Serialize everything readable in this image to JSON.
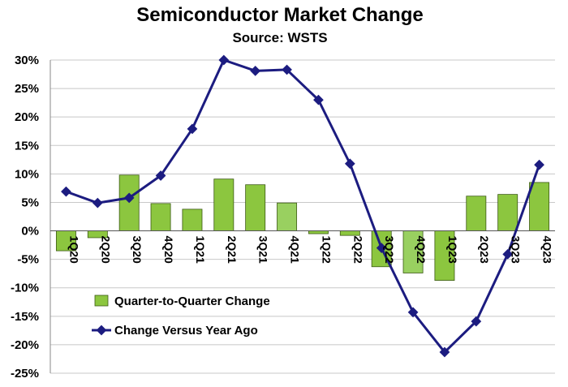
{
  "chart_data": {
    "type": "bar+line",
    "title": "Semiconductor Market Change",
    "subtitle": "Source: WSTS",
    "categories": [
      "1Q20",
      "2Q20",
      "3Q20",
      "4Q20",
      "1Q21",
      "2Q21",
      "3Q21",
      "4Q21",
      "1Q22",
      "2Q22",
      "3Q22",
      "4Q22",
      "1Q23",
      "2Q23",
      "3Q23",
      "4Q23"
    ],
    "series": [
      {
        "name": "Quarter-to-Quarter Change",
        "kind": "bar",
        "color": "#8cc63f",
        "values": [
          -3.5,
          -1.2,
          9.8,
          4.8,
          3.8,
          9.1,
          8.1,
          4.9,
          -0.5,
          -0.8,
          -6.3,
          -7.4,
          -8.7,
          6.1,
          6.4,
          8.5
        ]
      },
      {
        "name": "Change Versus Year Ago",
        "kind": "line",
        "color": "#1c1c80",
        "values": [
          6.9,
          4.9,
          5.8,
          9.7,
          17.9,
          30.0,
          28.1,
          28.3,
          23.0,
          11.8,
          -3.0,
          -14.3,
          -21.3,
          -15.9,
          -4.1,
          11.6
        ]
      }
    ],
    "ylim": [
      -25,
      30
    ],
    "yticks": [
      "30%",
      "25%",
      "20%",
      "15%",
      "10%",
      "5%",
      "0%",
      "-5%",
      "-10%",
      "-15%",
      "-20%",
      "-25%"
    ],
    "xlabel": "",
    "ylabel": "",
    "grid": true,
    "legend_position": "lower-left"
  }
}
